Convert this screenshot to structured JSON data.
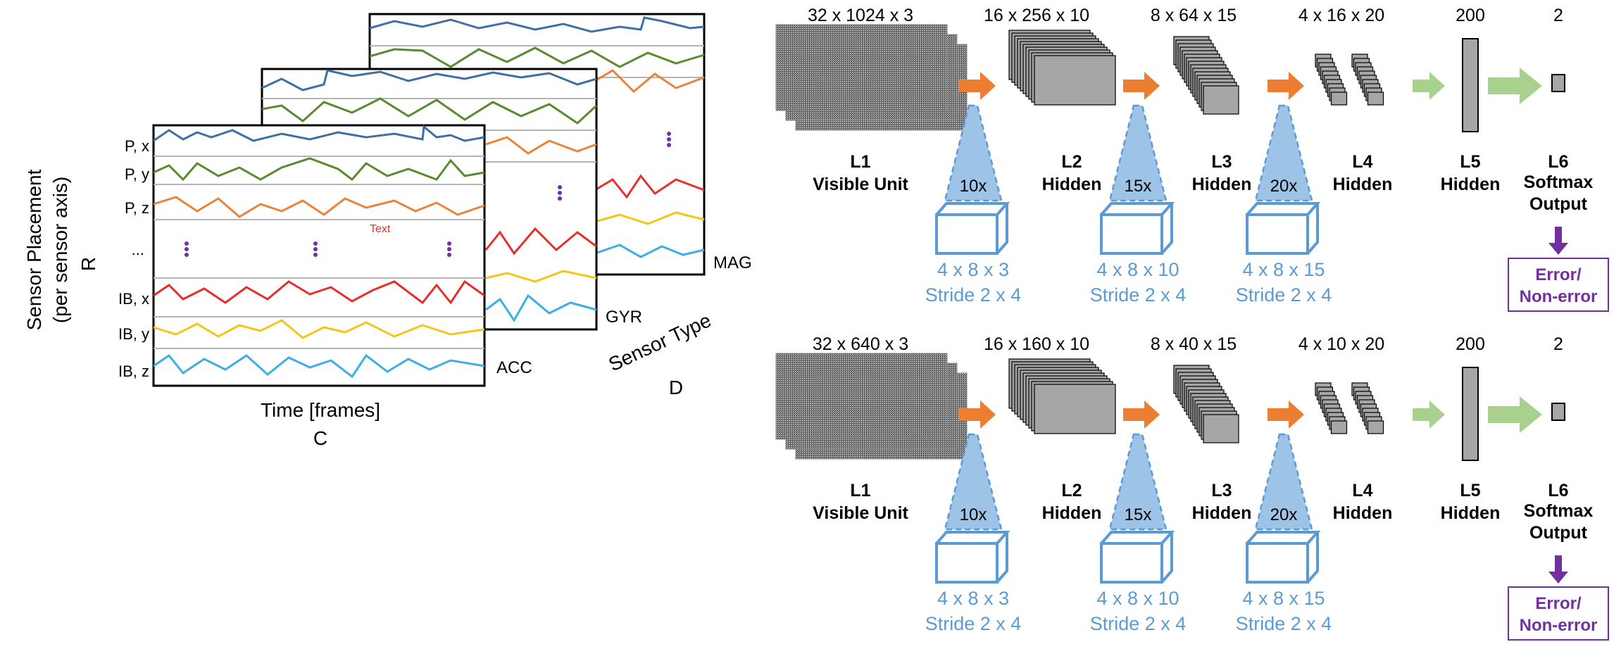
{
  "left_panel": {
    "ylabel_line1": "Sensor Placement",
    "ylabel_line2": "(per sensor axis)",
    "ylabel_var": "R",
    "xlabel": "Time [frames]",
    "xlabel_var": "C",
    "depth_label": "Sensor Type",
    "depth_var": "D",
    "row_labels": [
      "P, x",
      "P, y",
      "P, z",
      "...",
      "IB, x",
      "IB, y",
      "IB, z"
    ],
    "layer_labels": [
      "ACC",
      "GYR",
      "MAG"
    ],
    "annotation": "Text",
    "colors": {
      "blue": "#3f6fa3",
      "green": "#5a8a2e",
      "orange": "#e9843a",
      "red": "#e62f2b",
      "yellow": "#f5c518",
      "cyan": "#3daee6",
      "dots": "#7030a0"
    }
  },
  "networks": [
    {
      "dims": [
        "32 x 1024 x 3",
        "16 x 256 x 10",
        "8 x 64 x 15",
        "4 x 16 x 20",
        "200",
        "2"
      ],
      "filters": [
        "10x",
        "15x",
        "20x"
      ],
      "kernels": [
        {
          "size": "4 x 8 x 3",
          "stride": "Stride 2 x 4"
        },
        {
          "size": "4 x 8 x 10",
          "stride": "Stride 2 x 4"
        },
        {
          "size": "4 x 8 x 15",
          "stride": "Stride 2 x 4"
        }
      ],
      "layers": [
        {
          "id": "L1",
          "name": "Visible Unit"
        },
        {
          "id": "L2",
          "name": "Hidden"
        },
        {
          "id": "L3",
          "name": "Hidden"
        },
        {
          "id": "L4",
          "name": "Hidden"
        },
        {
          "id": "L5",
          "name": "Hidden"
        },
        {
          "id": "L6",
          "name": "Softmax",
          "name2": "Output"
        }
      ],
      "output_line1": "Error/",
      "output_line2": "Non-error"
    },
    {
      "dims": [
        "32 x 640 x 3",
        "16 x 160 x 10",
        "8 x 40 x 15",
        "4 x 10 x 20",
        "200",
        "2"
      ],
      "filters": [
        "10x",
        "15x",
        "20x"
      ],
      "kernels": [
        {
          "size": "4 x 8 x 3",
          "stride": "Stride 2 x 4"
        },
        {
          "size": "4 x 8 x 10",
          "stride": "Stride 2 x 4"
        },
        {
          "size": "4 x 8 x 15",
          "stride": "Stride 2 x 4"
        }
      ],
      "layers": [
        {
          "id": "L1",
          "name": "Visible Unit"
        },
        {
          "id": "L2",
          "name": "Hidden"
        },
        {
          "id": "L3",
          "name": "Hidden"
        },
        {
          "id": "L4",
          "name": "Hidden"
        },
        {
          "id": "L5",
          "name": "Hidden"
        },
        {
          "id": "L6",
          "name": "Softmax",
          "name2": "Output"
        }
      ],
      "output_line1": "Error/",
      "output_line2": "Non-error"
    }
  ],
  "net_colors": {
    "orange_arrow": "#ed7d31",
    "green_arrow": "#a9d18e",
    "cone_fill": "#9dc3e6",
    "kernel": "#5b9bd5",
    "kernel_text": "#5b9bd5",
    "output": "#7030a0",
    "map_fill": "#a6a6a6"
  }
}
